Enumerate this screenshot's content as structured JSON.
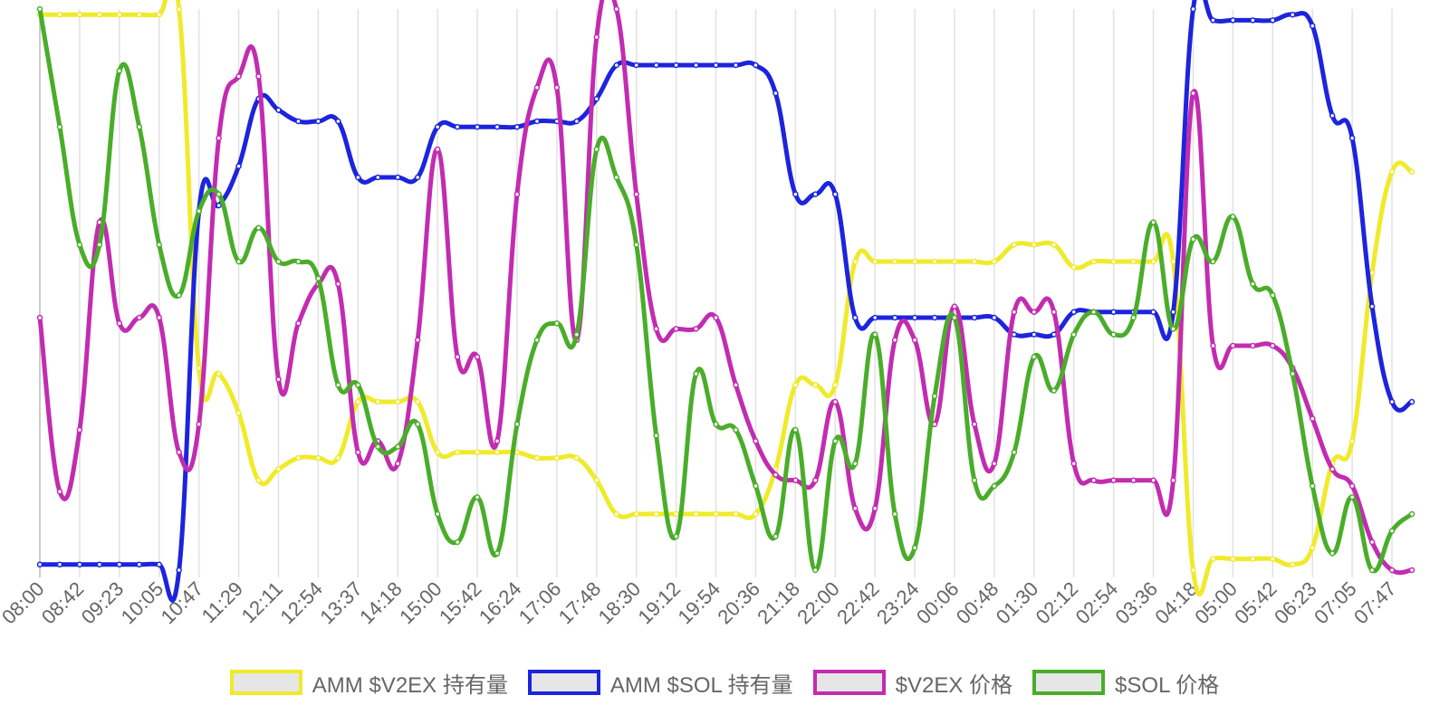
{
  "chart_data": {
    "type": "line",
    "categories": [
      "08:00",
      null,
      "08:42",
      null,
      "09:23",
      null,
      "10:05",
      null,
      "10:47",
      null,
      "11:29",
      null,
      "12:11",
      null,
      "12:54",
      null,
      "13:37",
      null,
      "14:18",
      null,
      "15:00",
      null,
      "15:42",
      null,
      "16:24",
      null,
      "17:06",
      null,
      "17:48",
      null,
      "18:30",
      null,
      "19:12",
      null,
      "19:54",
      null,
      "20:36",
      null,
      "21:18",
      null,
      "22:00",
      null,
      "22:42",
      null,
      "23:24",
      null,
      "00:06",
      null,
      "00:48",
      null,
      "01:30",
      null,
      "02:12",
      null,
      "02:54",
      null,
      "03:36",
      null,
      "04:18",
      null,
      "05:00",
      null,
      "05:42",
      null,
      "06:23",
      null,
      "07:05",
      null,
      "07:47",
      null
    ],
    "ylim": [
      0,
      100
    ],
    "grid": true,
    "series": [
      {
        "name": "AMM $V2EX 持有量",
        "color": "#f0ea2a",
        "values": [
          99,
          99,
          99,
          99,
          99,
          99,
          99,
          100,
          36,
          35,
          28,
          16,
          18,
          20,
          20,
          20,
          30,
          30,
          30,
          30,
          21,
          21,
          21,
          21,
          21,
          20,
          20,
          20,
          16,
          10,
          10,
          10,
          10,
          10,
          10,
          10,
          10,
          18,
          33,
          33,
          33,
          55,
          55,
          55,
          55,
          55,
          55,
          55,
          55,
          58,
          58,
          58,
          54,
          55,
          55,
          55,
          55,
          55,
          0,
          2,
          2,
          2,
          2,
          1,
          4,
          19,
          23,
          53,
          71,
          71
        ]
      },
      {
        "name": "AMM $SOL 持有量",
        "color": "#1c24dd",
        "values": [
          1,
          1,
          1,
          1,
          1,
          1,
          1,
          0,
          64,
          65,
          72,
          84,
          82,
          80,
          80,
          80,
          70,
          70,
          70,
          70,
          79,
          79,
          79,
          79,
          79,
          80,
          80,
          80,
          84,
          90,
          90,
          90,
          90,
          90,
          90,
          90,
          90,
          85,
          67,
          67,
          67,
          45,
          45,
          45,
          45,
          45,
          45,
          45,
          45,
          42,
          42,
          42,
          46,
          46,
          46,
          46,
          46,
          46,
          100,
          98,
          98,
          98,
          98,
          99,
          97,
          81,
          77,
          47,
          30,
          30
        ]
      },
      {
        "name": "$V2EX 价格",
        "color": "#c22cb0",
        "values": [
          45,
          14,
          25,
          62,
          44,
          45,
          45,
          21,
          26,
          77,
          88,
          88,
          34,
          44,
          51,
          51,
          21,
          23,
          19,
          41,
          75,
          38,
          38,
          23,
          67,
          86,
          86,
          41,
          95,
          100,
          67,
          43,
          43,
          43,
          45,
          33,
          23,
          17,
          16,
          16,
          30,
          11,
          11,
          41,
          41,
          26,
          47,
          26,
          19,
          46,
          46,
          46,
          19,
          16,
          16,
          16,
          16,
          16,
          85,
          40,
          40,
          40,
          40,
          36,
          27,
          18,
          15,
          5,
          0,
          0
        ]
      },
      {
        "name": "$SOL 价格",
        "color": "#4aad2a",
        "values": [
          100,
          79,
          58,
          58,
          89,
          79,
          58,
          49,
          64,
          67,
          55,
          61,
          55,
          55,
          52,
          33,
          33,
          22,
          22,
          26,
          10,
          5,
          13,
          3,
          26,
          41,
          44,
          42,
          75,
          70,
          58,
          24,
          6,
          35,
          26,
          25,
          15,
          6,
          25,
          0,
          23,
          19,
          42,
          10,
          4,
          31,
          45,
          16,
          15,
          21,
          38,
          32,
          42,
          46,
          42,
          45,
          62,
          43,
          59,
          55,
          63,
          51,
          49,
          35,
          15,
          3,
          13,
          0,
          7,
          10
        ]
      }
    ]
  }
}
